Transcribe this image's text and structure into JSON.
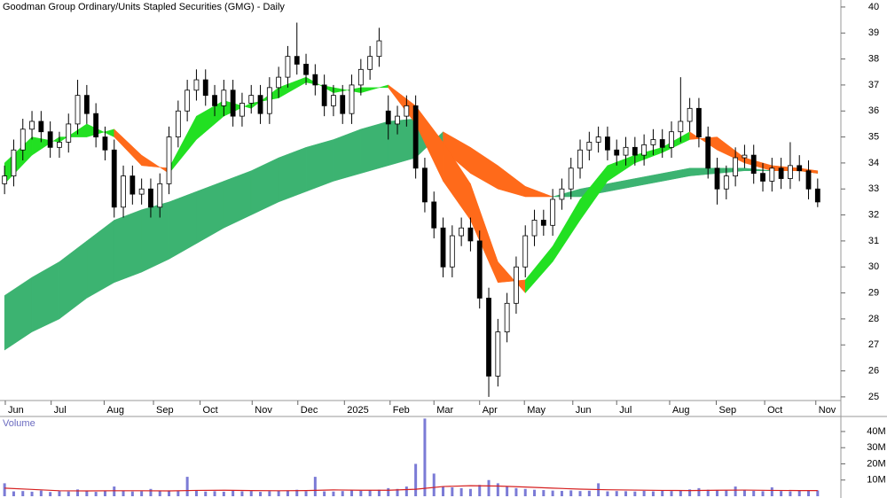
{
  "chart_data": {
    "type": "candlestick",
    "title": "Goodman Group Ordinary/Units Stapled Securities (GMG) - Daily",
    "volume_title": "Volume",
    "open": [
      33.2,
      33.5,
      34.5,
      35.3,
      35.6,
      35.2,
      34.6,
      34.8,
      35.5,
      36.6,
      35.9,
      35.0,
      34.5,
      32.3,
      33.5,
      32.8,
      33.0,
      32.3,
      33.2,
      35.0,
      36.0,
      36.8,
      37.2,
      36.6,
      36.2,
      36.8,
      35.8,
      36.3,
      36.6,
      35.9,
      36.9,
      37.3,
      38.1,
      37.8,
      37.4,
      37.0,
      36.2,
      36.6,
      35.9,
      37.0,
      37.6,
      38.1,
      36.0,
      35.5,
      35.8,
      36.2,
      33.8,
      32.5,
      31.5,
      30.0,
      31.2,
      31.5,
      31.0,
      28.8,
      25.8,
      27.5,
      28.6,
      30.0,
      31.2,
      31.8,
      31.6,
      32.6,
      33.0,
      33.8,
      34.5,
      34.8,
      35.0,
      34.5,
      34.3,
      34.6,
      34.3,
      34.7,
      34.9,
      34.6,
      35.2,
      35.6,
      36.1,
      35.0,
      33.8,
      33.0,
      33.5,
      34.2,
      34.3,
      33.6,
      33.3,
      33.8,
      33.4,
      33.9,
      33.7,
      33.0
    ],
    "high": [
      33.9,
      34.9,
      35.7,
      36.0,
      36.0,
      35.6,
      35.2,
      35.9,
      37.2,
      37.0,
      36.3,
      35.4,
      34.9,
      33.9,
      33.9,
      33.4,
      33.4,
      33.6,
      35.4,
      36.4,
      37.2,
      37.6,
      37.6,
      37.0,
      37.2,
      37.2,
      36.7,
      37.0,
      37.0,
      37.3,
      37.7,
      38.5,
      39.4,
      38.2,
      37.8,
      37.4,
      37.0,
      37.0,
      37.4,
      38.0,
      38.5,
      39.2,
      36.6,
      36.2,
      36.6,
      36.6,
      34.2,
      32.9,
      31.9,
      31.6,
      31.9,
      31.9,
      31.4,
      29.2,
      28.0,
      29.0,
      30.4,
      31.6,
      32.2,
      32.2,
      33.0,
      33.4,
      34.2,
      34.9,
      35.2,
      35.4,
      35.4,
      34.9,
      35.0,
      35.0,
      35.1,
      35.3,
      35.3,
      35.6,
      37.3,
      36.5,
      36.5,
      35.4,
      34.2,
      33.9,
      34.6,
      34.7,
      34.7,
      34.0,
      34.2,
      34.2,
      34.8,
      34.3,
      34.1,
      33.4
    ],
    "low": [
      32.8,
      33.1,
      34.1,
      34.9,
      34.8,
      34.2,
      34.2,
      34.4,
      35.1,
      35.5,
      34.6,
      34.1,
      31.9,
      31.9,
      32.4,
      32.4,
      31.9,
      31.9,
      32.8,
      34.6,
      35.6,
      36.4,
      36.2,
      35.8,
      35.8,
      35.4,
      35.4,
      35.9,
      35.5,
      35.5,
      36.5,
      36.9,
      37.4,
      37.0,
      36.6,
      35.8,
      35.8,
      35.5,
      35.5,
      36.6,
      37.2,
      37.7,
      34.9,
      35.1,
      35.4,
      33.4,
      32.1,
      31.1,
      29.6,
      29.6,
      30.8,
      30.6,
      28.4,
      25.0,
      25.4,
      27.1,
      28.2,
      29.6,
      30.8,
      31.2,
      31.2,
      32.2,
      32.6,
      33.4,
      34.1,
      34.4,
      34.1,
      33.9,
      33.9,
      33.9,
      33.9,
      34.3,
      34.2,
      34.2,
      34.8,
      35.2,
      34.6,
      33.4,
      32.4,
      32.6,
      33.1,
      33.8,
      33.2,
      32.9,
      32.9,
      33.0,
      33.0,
      33.3,
      32.6,
      32.3
    ],
    "close": [
      33.5,
      34.5,
      35.3,
      35.6,
      35.2,
      34.6,
      34.8,
      35.5,
      36.6,
      35.9,
      35.0,
      34.5,
      32.3,
      33.5,
      32.8,
      33.0,
      32.3,
      33.2,
      35.0,
      36.0,
      36.8,
      37.2,
      36.6,
      36.2,
      36.8,
      35.8,
      36.3,
      36.6,
      35.9,
      36.9,
      37.3,
      38.1,
      37.8,
      37.4,
      37.0,
      36.2,
      36.6,
      35.9,
      37.0,
      37.6,
      38.1,
      38.7,
      35.5,
      35.8,
      36.2,
      33.8,
      32.5,
      31.5,
      30.0,
      31.2,
      31.5,
      31.0,
      28.8,
      25.8,
      27.5,
      28.6,
      30.0,
      31.2,
      31.8,
      31.6,
      32.6,
      33.0,
      33.8,
      34.5,
      34.8,
      35.0,
      34.5,
      34.3,
      34.6,
      34.3,
      34.7,
      34.9,
      34.6,
      35.2,
      35.6,
      36.1,
      35.0,
      33.8,
      33.0,
      33.5,
      34.2,
      34.3,
      33.6,
      33.3,
      33.8,
      33.4,
      33.9,
      33.7,
      33.0,
      32.5
    ],
    "volume": [
      8000000,
      3000000,
      3200000,
      2800000,
      3500000,
      2600000,
      3100000,
      2900000,
      4200000,
      3000000,
      2700000,
      3300000,
      6000000,
      3400000,
      2900000,
      3100000,
      4500000,
      3000000,
      3600000,
      3200000,
      12000000,
      3300000,
      2900000,
      3100000,
      2800000,
      3400000,
      3000000,
      3200000,
      2700000,
      3100000,
      3500000,
      3300000,
      4000000,
      3100000,
      12000000,
      3000000,
      2900000,
      3200000,
      3600000,
      3400000,
      3700000,
      4000000,
      5000000,
      4500000,
      6000000,
      20000000,
      48000000,
      14000000,
      6000000,
      5500000,
      5000000,
      4500000,
      7000000,
      10000000,
      8000000,
      6000000,
      5000000,
      4500000,
      4000000,
      3800000,
      3500000,
      3300000,
      3600000,
      3200000,
      3400000,
      8000000,
      3000000,
      3200000,
      3100000,
      2900000,
      3300000,
      3000000,
      3500000,
      3200000,
      3600000,
      4200000,
      5000000,
      4000000,
      3800000,
      3500000,
      6000000,
      3600000,
      3300000,
      3100000,
      5500000,
      3200000,
      3000000,
      3300000,
      3400000,
      3600000
    ],
    "volume_avg_x": [
      0,
      3,
      6,
      9,
      12,
      15,
      18,
      21,
      24,
      27,
      30,
      33,
      36,
      39,
      42,
      45,
      48,
      51,
      54,
      57,
      60,
      63,
      66,
      69,
      72,
      75,
      78,
      81,
      84,
      87,
      89
    ],
    "volume_avg": [
      5000000,
      4200000,
      3400000,
      3300000,
      3400000,
      3400000,
      3300000,
      3600000,
      3700000,
      3500000,
      3400000,
      3500000,
      3900000,
      3700000,
      3700000,
      4300000,
      6000000,
      6500000,
      6300000,
      5700000,
      5000000,
      4400000,
      4000000,
      3800000,
      3600000,
      3500000,
      3700000,
      3800000,
      3600000,
      3500000,
      3500000
    ],
    "short_ribbon": {
      "x": [
        0,
        3,
        6,
        9,
        12,
        15,
        18,
        21,
        24,
        27,
        30,
        33,
        36,
        39,
        42,
        45,
        48,
        51,
        54,
        57,
        60,
        63,
        66,
        69,
        72,
        75,
        78,
        81,
        84,
        87,
        89
      ],
      "fast": [
        34.0,
        35.0,
        34.8,
        35.5,
        35.0,
        33.9,
        33.8,
        35.8,
        36.4,
        36.1,
        36.9,
        37.3,
        36.7,
        36.9,
        36.9,
        35.5,
        33.3,
        31.8,
        29.4,
        29.5,
        30.8,
        32.6,
        33.9,
        34.3,
        34.6,
        35.2,
        34.5,
        34.0,
        33.7,
        33.7,
        33.6
      ],
      "slow": [
        33.2,
        34.3,
        35.0,
        35.0,
        35.3,
        34.3,
        33.6,
        34.9,
        35.8,
        36.3,
        36.5,
        37.1,
        36.9,
        36.7,
        37.0,
        36.2,
        34.8,
        33.2,
        30.2,
        29.0,
        30.2,
        31.8,
        33.3,
        34.0,
        34.4,
        34.9,
        35.0,
        34.2,
        33.9,
        33.8,
        33.7
      ],
      "up_color": "#22e022",
      "down_color": "#ff6a1a"
    },
    "long_ribbon": {
      "x": [
        0,
        3,
        6,
        9,
        12,
        15,
        18,
        21,
        24,
        27,
        30,
        33,
        36,
        39,
        42,
        45,
        48,
        51,
        54,
        57,
        60,
        63,
        66,
        69,
        72,
        75,
        78,
        81,
        84,
        87,
        89
      ],
      "fast": [
        28.9,
        29.6,
        30.2,
        31.0,
        31.8,
        32.2,
        32.5,
        32.9,
        33.3,
        33.7,
        34.2,
        34.6,
        34.9,
        35.3,
        35.6,
        35.7,
        34.5,
        33.6,
        33.0,
        32.7,
        32.7,
        33.0,
        33.2,
        33.4,
        33.6,
        33.8,
        33.8,
        33.8,
        33.7,
        33.7,
        33.7
      ],
      "slow": [
        26.8,
        27.5,
        28.0,
        28.8,
        29.4,
        29.8,
        30.3,
        30.9,
        31.5,
        32.0,
        32.5,
        32.9,
        33.3,
        33.6,
        33.9,
        34.2,
        35.2,
        34.6,
        33.9,
        33.1,
        32.7,
        32.7,
        32.9,
        33.1,
        33.3,
        33.5,
        33.6,
        33.7,
        33.7,
        33.7,
        33.6
      ],
      "up_color": "#3cb371",
      "down_color": "#ff6a1a"
    },
    "xlim": [
      -0.5,
      90.28
    ],
    "xticks": [
      {
        "value": 0.08,
        "label": "Jun"
      },
      {
        "value": 5.1,
        "label": "Jul"
      },
      {
        "value": 10.9,
        "label": "Aug"
      },
      {
        "value": 16.3,
        "label": "Sep"
      },
      {
        "value": 21.4,
        "label": "Oct"
      },
      {
        "value": 27.1,
        "label": "Nov"
      },
      {
        "value": 32.1,
        "label": "Dec"
      },
      {
        "value": 37.2,
        "label": "2025"
      },
      {
        "value": 42.2,
        "label": "Feb"
      },
      {
        "value": 47.0,
        "label": "Mar"
      },
      {
        "value": 52.0,
        "label": "Apr"
      },
      {
        "value": 56.9,
        "label": "May"
      },
      {
        "value": 62.2,
        "label": "Jun"
      },
      {
        "value": 67.0,
        "label": "Jul"
      },
      {
        "value": 72.8,
        "label": "Aug"
      },
      {
        "value": 77.9,
        "label": "Sep"
      },
      {
        "value": 83.2,
        "label": "Oct"
      },
      {
        "value": 88.8,
        "label": "Nov"
      }
    ],
    "ylim": [
      24.86,
      40.27
    ],
    "yticks": [
      25,
      26,
      27,
      28,
      29,
      30,
      31,
      32,
      33,
      34,
      35,
      36,
      37,
      38,
      39,
      40
    ],
    "volume_ylim": [
      0,
      46000000
    ],
    "volume_yticks": [
      {
        "value": 10000000,
        "label": "10M"
      },
      {
        "value": 20000000,
        "label": "20M"
      },
      {
        "value": 30000000,
        "label": "30M"
      },
      {
        "value": 40000000,
        "label": "40M"
      }
    ],
    "volume_color": "#7b7bd6",
    "volume_avg_color": "#d62020"
  }
}
